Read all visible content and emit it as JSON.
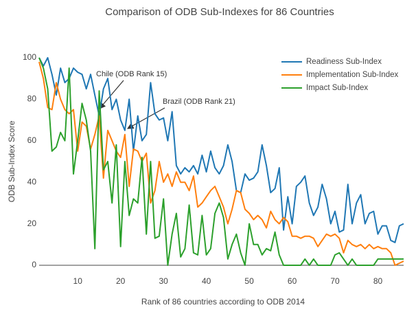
{
  "chart_data": {
    "type": "line",
    "title": "Comparison of ODB Sub-Indexes for 86 Countries",
    "x_label": "Rank of 86 countries according to ODB 2014",
    "y_label": "ODB Sub-Index Score",
    "x": [
      1,
      2,
      3,
      4,
      5,
      6,
      7,
      8,
      9,
      10,
      11,
      12,
      13,
      14,
      15,
      16,
      17,
      18,
      19,
      20,
      21,
      22,
      23,
      24,
      25,
      26,
      27,
      28,
      29,
      30,
      31,
      32,
      33,
      34,
      35,
      36,
      37,
      38,
      39,
      40,
      41,
      42,
      43,
      44,
      45,
      46,
      47,
      48,
      49,
      50,
      51,
      52,
      53,
      54,
      55,
      56,
      57,
      58,
      59,
      60,
      61,
      62,
      63,
      64,
      65,
      66,
      67,
      68,
      69,
      70,
      71,
      72,
      73,
      74,
      75,
      76,
      77,
      78,
      79,
      80,
      81,
      82,
      83,
      84,
      85,
      86
    ],
    "series": [
      {
        "name": "Readiness Sub-Index",
        "color": "#1f77b4",
        "values": [
          100,
          96,
          100,
          92,
          82,
          95,
          88,
          90,
          95,
          93,
          92,
          85,
          92,
          82,
          72,
          85,
          90,
          75,
          80,
          70,
          65,
          80,
          55,
          72,
          60,
          63,
          88,
          73,
          70,
          71,
          60,
          74,
          48,
          44,
          47,
          45,
          48,
          44,
          53,
          45,
          55,
          47,
          44,
          48,
          58,
          50,
          36,
          35,
          44,
          41,
          42,
          45,
          58,
          48,
          35,
          37,
          47,
          17,
          33,
          20,
          38,
          40,
          43,
          30,
          24,
          28,
          39,
          32,
          20,
          26,
          16,
          17,
          39,
          20,
          30,
          34,
          20,
          25,
          26,
          15,
          19,
          19,
          12,
          11,
          19,
          20
        ]
      },
      {
        "name": "Implementation Sub-Index",
        "color": "#ff7f0e",
        "values": [
          98,
          90,
          76,
          75,
          88,
          80,
          75,
          73,
          75,
          55,
          69,
          67,
          56,
          63,
          72,
          42,
          65,
          60,
          55,
          52,
          63,
          38,
          56,
          55,
          50,
          54,
          30,
          36,
          50,
          40,
          44,
          38,
          45,
          40,
          40,
          36,
          43,
          28,
          30,
          33,
          36,
          38,
          33,
          28,
          20,
          27,
          36,
          35,
          27,
          25,
          22,
          24,
          22,
          18,
          26,
          22,
          20,
          23,
          21,
          14,
          14,
          13,
          14,
          14,
          13,
          9,
          12,
          15,
          14,
          15,
          13,
          6,
          12,
          10,
          9,
          10,
          8,
          10,
          8,
          9,
          8,
          8,
          6,
          0,
          1,
          2
        ]
      },
      {
        "name": "Impact Sub-Index",
        "color": "#2ca02c",
        "values": [
          100,
          95,
          85,
          55,
          57,
          64,
          60,
          95,
          44,
          60,
          78,
          70,
          55,
          8,
          84,
          46,
          50,
          30,
          58,
          9,
          50,
          24,
          32,
          30,
          52,
          15,
          50,
          13,
          14,
          32,
          0,
          15,
          25,
          4,
          8,
          29,
          6,
          5,
          24,
          5,
          8,
          25,
          30,
          23,
          3,
          10,
          15,
          6,
          0,
          20,
          10,
          10,
          5,
          8,
          7,
          16,
          5,
          0,
          0,
          0,
          0,
          0,
          3,
          0,
          3,
          0,
          0,
          0,
          0,
          5,
          6,
          3,
          0,
          3,
          0,
          0,
          0,
          0,
          0,
          3,
          3,
          3,
          3,
          3,
          3,
          3
        ]
      }
    ],
    "annotations": [
      "Chile (ODB Rank 15)",
      "Brazil (ODB Rank 21)"
    ],
    "xlim": [
      1,
      86
    ],
    "xticks": [
      10,
      20,
      30,
      40,
      50,
      60,
      70,
      80
    ],
    "ylim": [
      0,
      100
    ],
    "yticks": [
      0,
      20,
      40,
      60,
      80,
      100
    ],
    "grid": false,
    "legend": "top right"
  }
}
